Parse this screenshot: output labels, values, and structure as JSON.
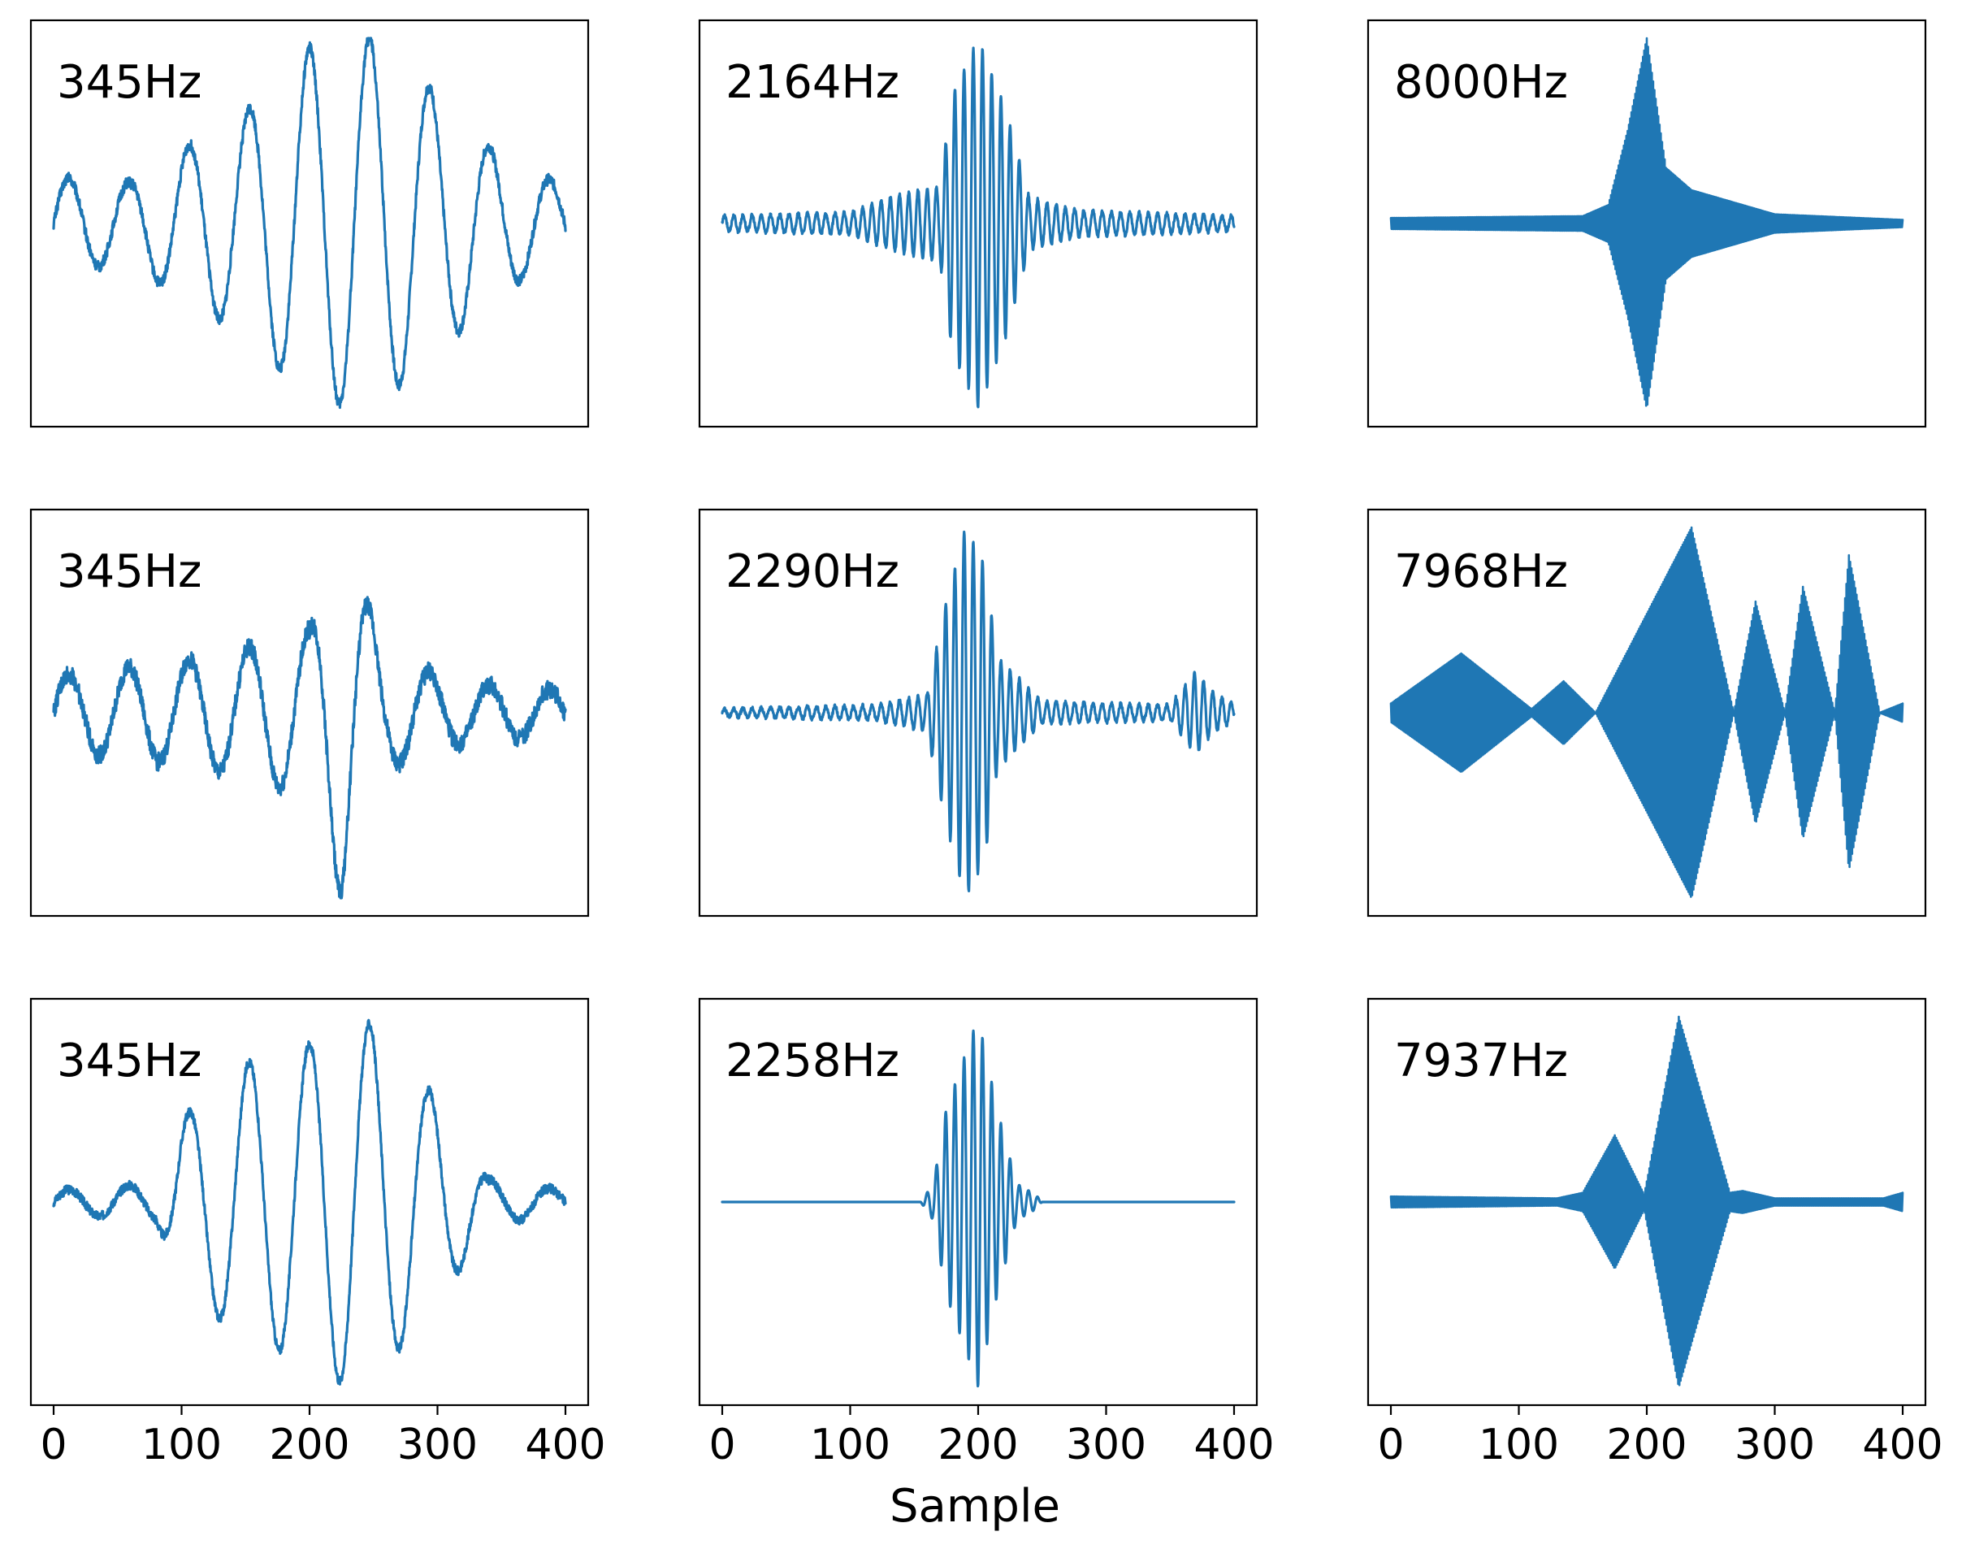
{
  "chart_data": {
    "type": "line",
    "xlabel": "Sample",
    "x_ticks": [
      "0",
      "100",
      "200",
      "300",
      "400"
    ],
    "xlim": [
      0,
      400
    ],
    "x_tick_labels_on_bottom_row_only": true,
    "y_axis": "hidden",
    "line_color": "#1f77b4",
    "grid": false,
    "layout": "3 rows x 3 columns",
    "panels": [
      {
        "label": "345Hz",
        "row": 0,
        "col": 0,
        "frequency_hz": 345,
        "envelope": [
          [
            0,
            0.25
          ],
          [
            60,
            0.22
          ],
          [
            100,
            0.4
          ],
          [
            150,
            0.6
          ],
          [
            200,
            0.95
          ],
          [
            248,
            1.0
          ],
          [
            300,
            0.7
          ],
          [
            350,
            0.35
          ],
          [
            400,
            0.2
          ]
        ],
        "noise": 0.06,
        "ylim": [
          -1.0,
          1.0
        ]
      },
      {
        "label": "2164Hz",
        "row": 0,
        "col": 1,
        "frequency_hz": 2164,
        "envelope": [
          [
            0,
            0.04
          ],
          [
            100,
            0.06
          ],
          [
            140,
            0.16
          ],
          [
            170,
            0.2
          ],
          [
            180,
            0.7
          ],
          [
            200,
            1.0
          ],
          [
            220,
            0.65
          ],
          [
            240,
            0.14
          ],
          [
            280,
            0.07
          ],
          [
            400,
            0.04
          ]
        ],
        "noise": 0.02,
        "ylim": [
          -1.0,
          1.0
        ]
      },
      {
        "label": "8000Hz",
        "row": 0,
        "col": 2,
        "frequency_hz": 8000,
        "envelope": [
          [
            0,
            0.03
          ],
          [
            150,
            0.04
          ],
          [
            170,
            0.1
          ],
          [
            185,
            0.5
          ],
          [
            200,
            1.0
          ],
          [
            215,
            0.3
          ],
          [
            235,
            0.18
          ],
          [
            265,
            0.12
          ],
          [
            300,
            0.05
          ],
          [
            400,
            0.02
          ]
        ],
        "noise": 0.01,
        "ylim": [
          -1.0,
          1.0
        ]
      },
      {
        "label": "345Hz",
        "row": 1,
        "col": 0,
        "frequency_hz": 345,
        "envelope": [
          [
            0,
            0.2
          ],
          [
            100,
            0.28
          ],
          [
            150,
            0.35
          ],
          [
            200,
            0.45
          ],
          [
            225,
            1.0
          ],
          [
            260,
            0.3
          ],
          [
            320,
            0.16
          ],
          [
            400,
            0.12
          ]
        ],
        "noise": 0.1,
        "ylim": [
          -1.0,
          1.0
        ]
      },
      {
        "label": "2290Hz",
        "row": 1,
        "col": 1,
        "frequency_hz": 2290,
        "envelope": [
          [
            0,
            0.02
          ],
          [
            120,
            0.04
          ],
          [
            160,
            0.1
          ],
          [
            175,
            0.6
          ],
          [
            190,
            1.0
          ],
          [
            205,
            0.8
          ],
          [
            215,
            0.3
          ],
          [
            250,
            0.06
          ],
          [
            350,
            0.04
          ],
          [
            370,
            0.22
          ],
          [
            385,
            0.1
          ],
          [
            400,
            0.05
          ]
        ],
        "noise": 0.02,
        "ylim": [
          -1.0,
          1.0
        ]
      },
      {
        "label": "7968Hz",
        "row": 1,
        "col": 2,
        "frequency_hz": 7968,
        "envelope": [
          [
            0,
            0.05
          ],
          [
            55,
            0.32
          ],
          [
            110,
            0.02
          ],
          [
            135,
            0.17
          ],
          [
            160,
            0.0
          ],
          [
            235,
            1.0
          ],
          [
            268,
            0.0
          ],
          [
            285,
            0.6
          ],
          [
            308,
            0.0
          ],
          [
            322,
            0.68
          ],
          [
            347,
            0.0
          ],
          [
            358,
            0.85
          ],
          [
            382,
            0.0
          ],
          [
            400,
            0.05
          ]
        ],
        "noise": 0.0,
        "ylim": [
          -1.0,
          1.0
        ]
      },
      {
        "label": "345Hz",
        "row": 2,
        "col": 0,
        "frequency_hz": 345,
        "envelope": [
          [
            0,
            0.06
          ],
          [
            80,
            0.1
          ],
          [
            100,
            0.45
          ],
          [
            150,
            0.75
          ],
          [
            200,
            0.85
          ],
          [
            230,
            1.0
          ],
          [
            250,
            0.95
          ],
          [
            300,
            0.55
          ],
          [
            340,
            0.12
          ],
          [
            400,
            0.06
          ]
        ],
        "noise": 0.05,
        "ylim": [
          -1.0,
          1.0
        ]
      },
      {
        "label": "2258Hz",
        "row": 2,
        "col": 1,
        "frequency_hz": 2258,
        "envelope": [
          [
            0,
            0.0
          ],
          [
            155,
            0.0
          ],
          [
            165,
            0.1
          ],
          [
            175,
            0.5
          ],
          [
            200,
            1.0
          ],
          [
            215,
            0.5
          ],
          [
            230,
            0.1
          ],
          [
            245,
            0.04
          ],
          [
            250,
            0.0
          ],
          [
            400,
            0.0
          ]
        ],
        "noise": 0.0,
        "ylim": [
          -1.0,
          1.0
        ]
      },
      {
        "label": "7937Hz",
        "row": 2,
        "col": 2,
        "frequency_hz": 7937,
        "envelope": [
          [
            0,
            0.03
          ],
          [
            130,
            0.02
          ],
          [
            150,
            0.05
          ],
          [
            175,
            0.36
          ],
          [
            198,
            0.04
          ],
          [
            225,
            1.0
          ],
          [
            265,
            0.05
          ],
          [
            275,
            0.06
          ],
          [
            300,
            0.02
          ],
          [
            385,
            0.02
          ],
          [
            400,
            0.05
          ]
        ],
        "noise": 0.01,
        "ylim": [
          -1.0,
          1.0
        ]
      }
    ]
  }
}
